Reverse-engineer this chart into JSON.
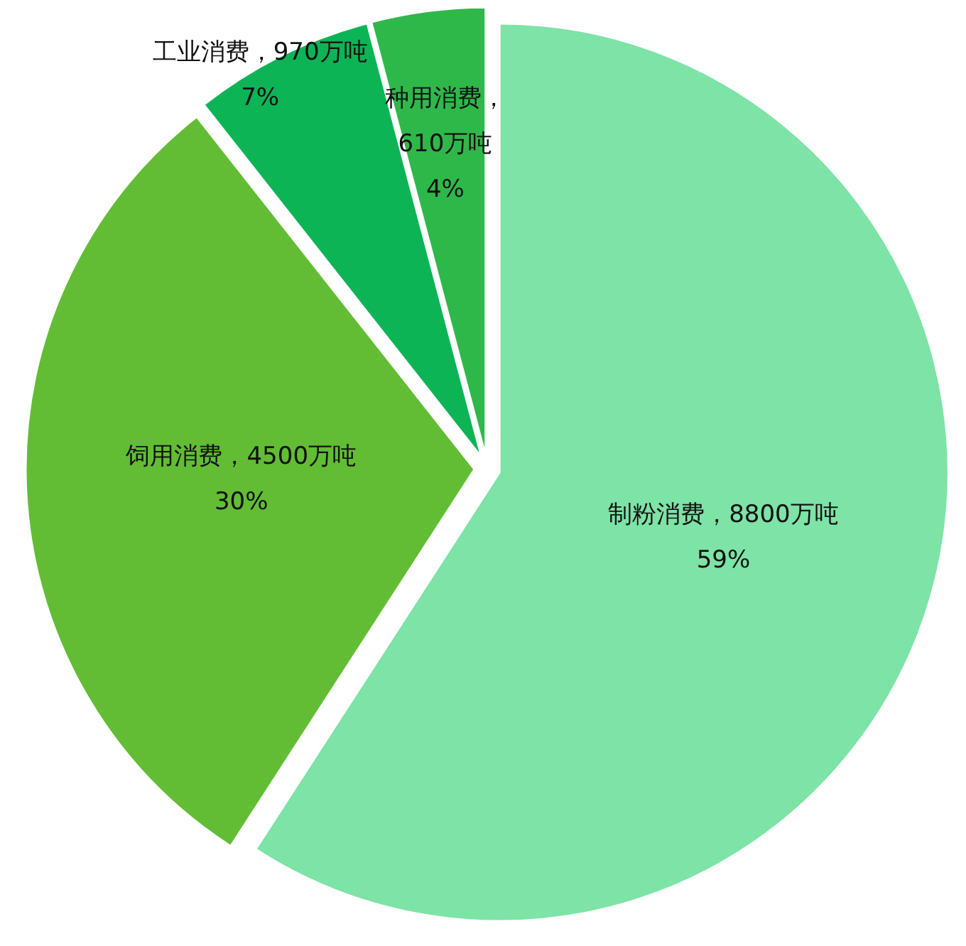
{
  "chart_data": {
    "type": "pie",
    "categories": [
      "制粉消费",
      "饲用消费",
      "工业消费",
      "种用消费"
    ],
    "values": [
      8800,
      4500,
      970,
      610
    ],
    "colors": [
      "#7de3a6",
      "#62bd34",
      "#0db456",
      "#2fb84a"
    ],
    "value_labels": [
      "，8800万吨\n59%",
      "，4500万吨\n30%",
      "，970万吨\n7%",
      "，\n610万吨\n4%"
    ],
    "legend": false
  }
}
